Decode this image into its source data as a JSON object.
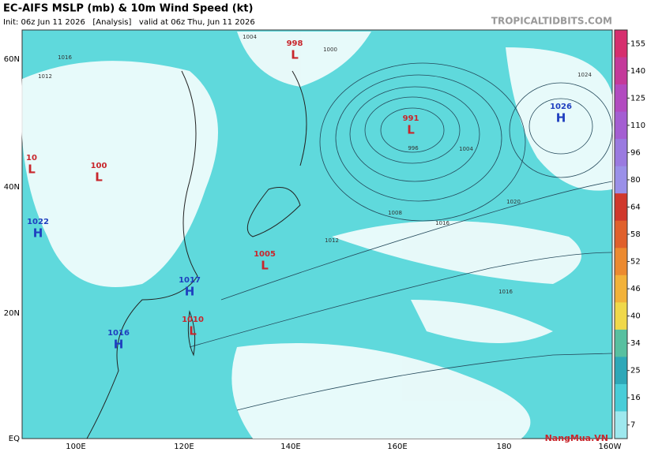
{
  "header": {
    "title": "EC-AIFS MSLP (mb) & 10m Wind Speed (kt)",
    "subtitle": "Init: 06z Jun 11 2026   [Analysis]   valid at 06z Thu, Jun 11 2026",
    "site": "TROPICALTIDBITS.COM"
  },
  "map": {
    "lat_labels": [
      "60N",
      "40N",
      "20N",
      "EQ"
    ],
    "lon_labels": [
      "100E",
      "120E",
      "140E",
      "160E",
      "180",
      "160W"
    ],
    "centers": [
      {
        "value": "998",
        "letter": "L",
        "color": "#c8262c"
      },
      {
        "value": "991",
        "letter": "L",
        "color": "#c8262c"
      },
      {
        "value": "1026",
        "letter": "H",
        "color": "#1f3fbf"
      },
      {
        "value": "10",
        "letter": "L",
        "color": "#c8262c"
      },
      {
        "value": "100",
        "letter": "L",
        "color": "#c8262c"
      },
      {
        "value": "1022",
        "letter": "H",
        "color": "#1f3fbf"
      },
      {
        "value": "1005",
        "letter": "L",
        "color": "#c8262c"
      },
      {
        "value": "1017",
        "letter": "H",
        "color": "#1f3fbf"
      },
      {
        "value": "1010",
        "letter": "L",
        "color": "#c8262c"
      },
      {
        "value": "1016",
        "letter": "H",
        "color": "#1f3fbf"
      }
    ],
    "isobar_labels": [
      "1004",
      "1000",
      "1016",
      "1012",
      "1008",
      "1016",
      "1020",
      "1024",
      "1016",
      "1012",
      "996",
      "1004"
    ]
  },
  "colorbar": {
    "ticks": [
      155,
      140,
      125,
      110,
      96,
      80,
      64,
      58,
      52,
      46,
      40,
      34,
      25,
      16,
      7
    ],
    "colors": [
      "#d62f6e",
      "#c43a9a",
      "#b24bc0",
      "#a45ed2",
      "#9a7ae0",
      "#9a90e8",
      "#d0382c",
      "#e0602c",
      "#ec8a30",
      "#f2b23a",
      "#f0d84a",
      "#58c0a0",
      "#2ea8b8",
      "#48cdd8",
      "#9ee8ee"
    ]
  },
  "watermark": "NangMua.VN"
}
